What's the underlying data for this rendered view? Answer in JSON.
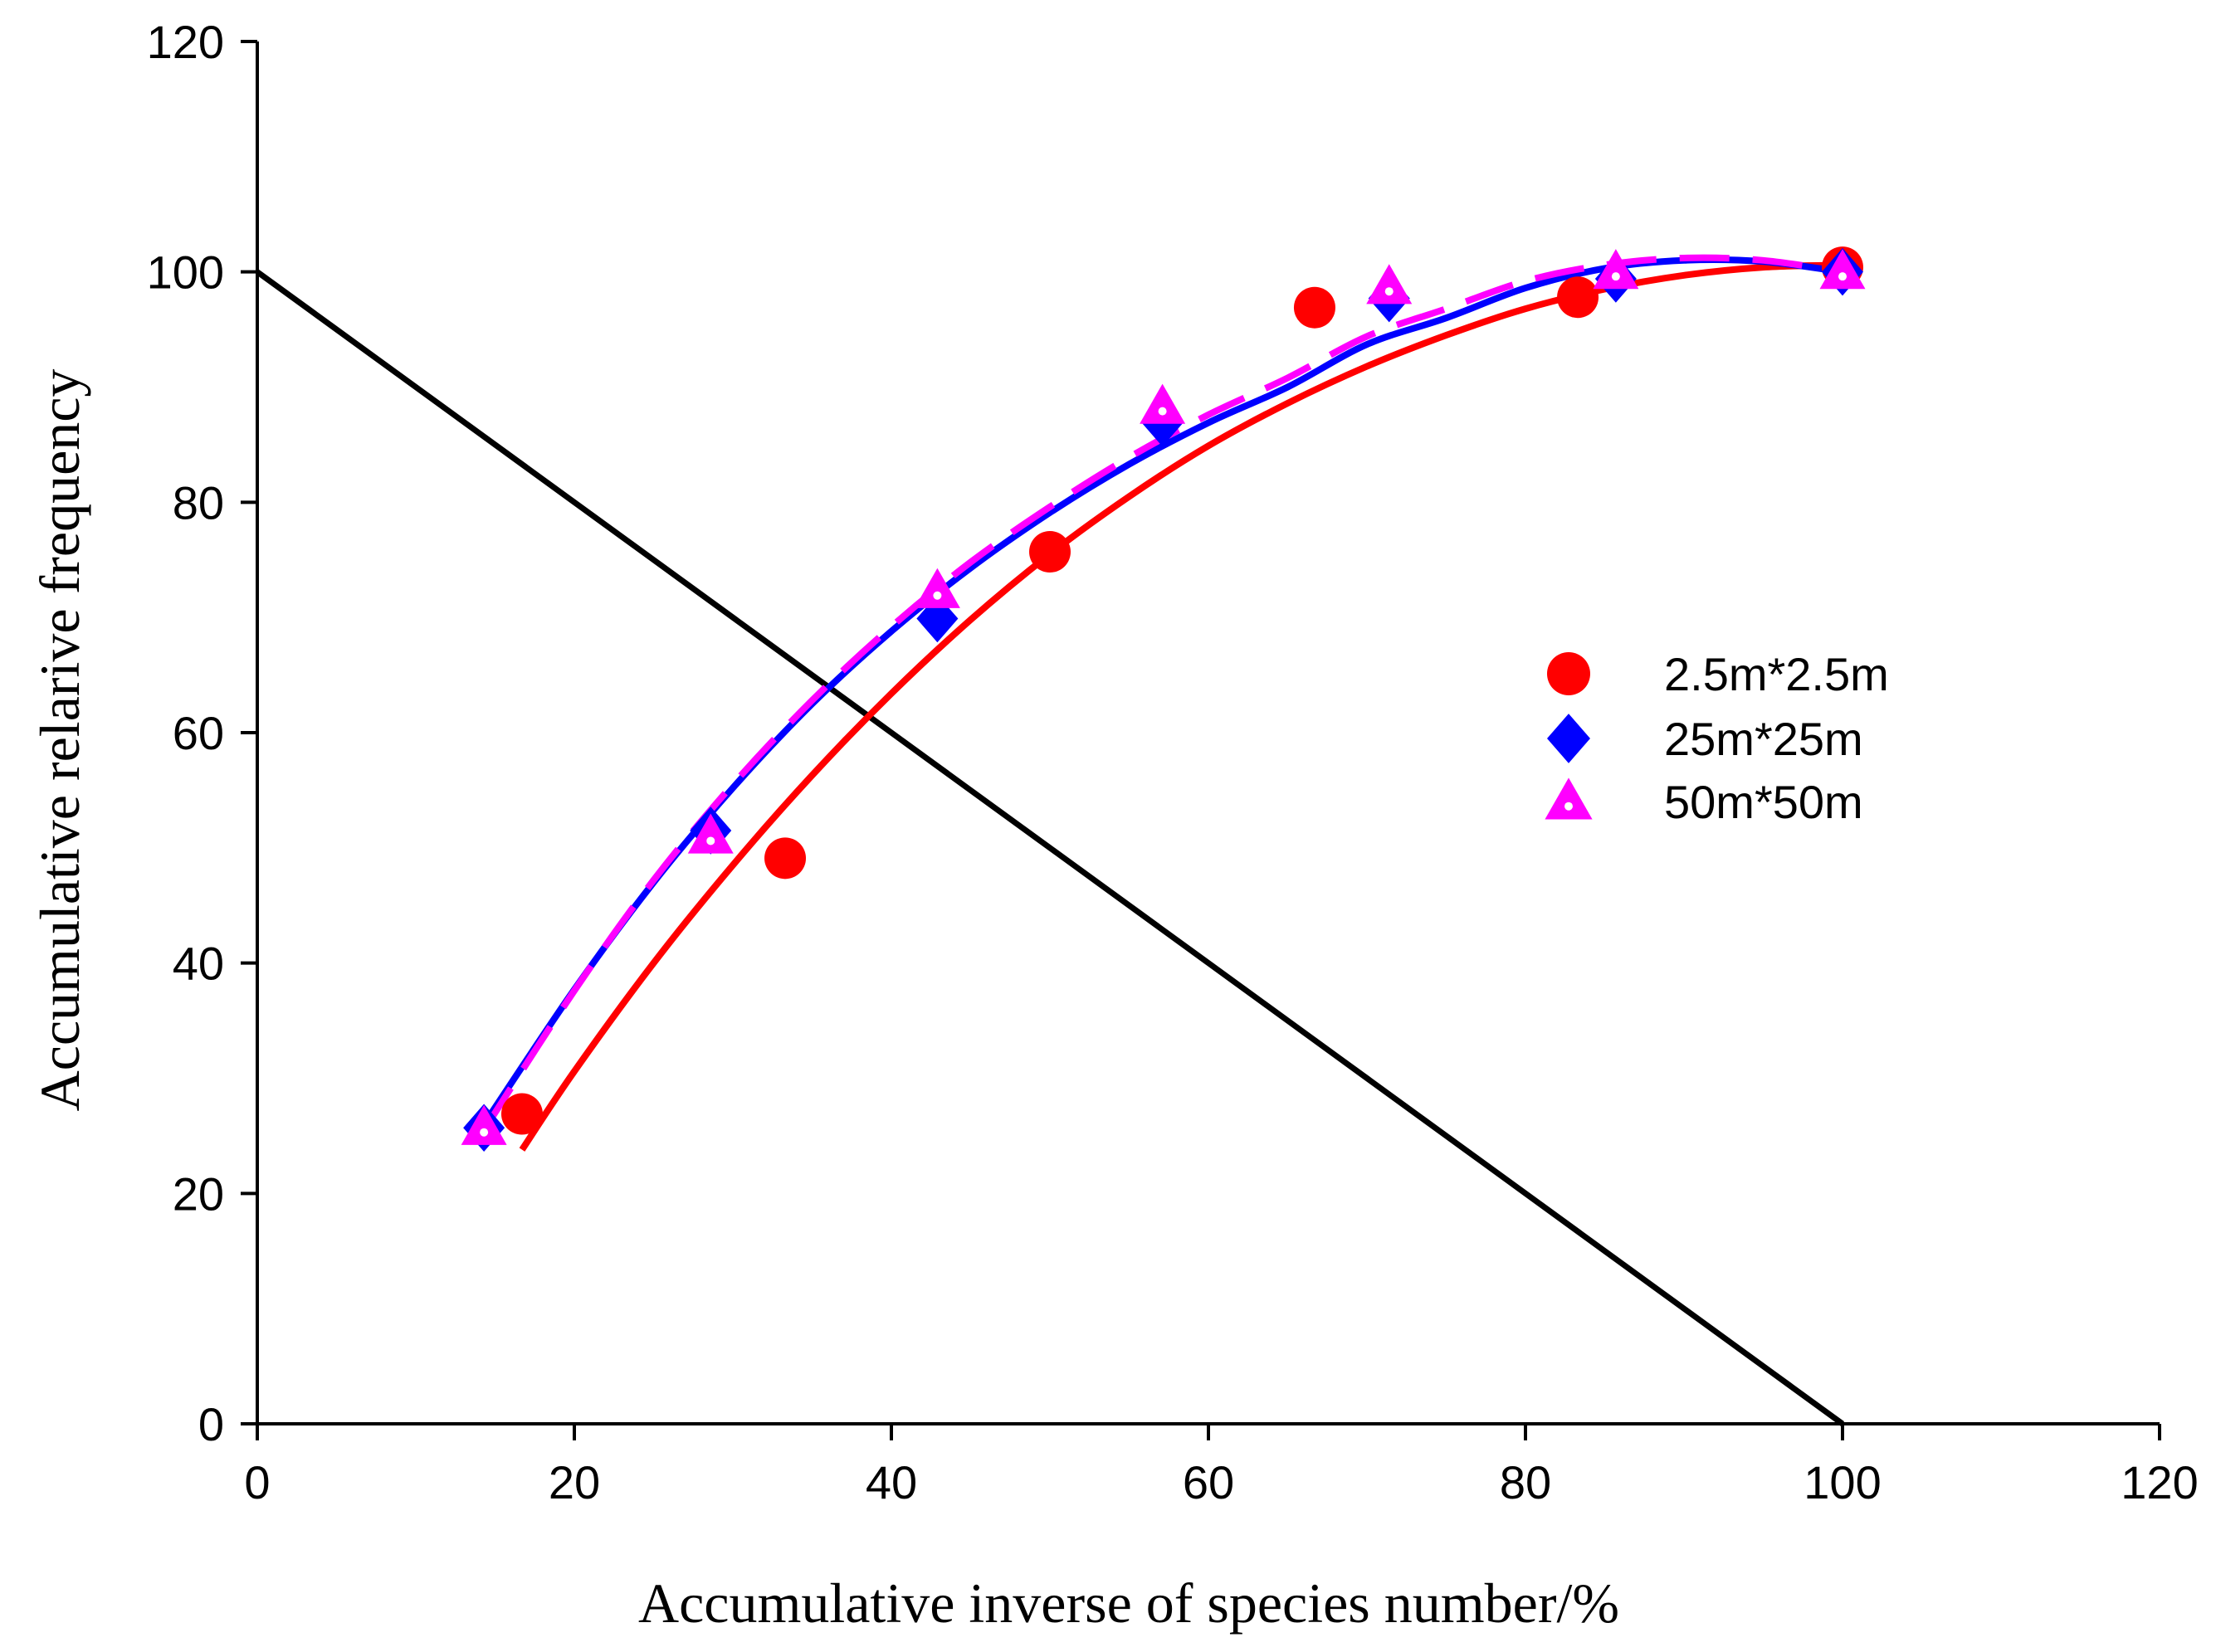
{
  "chart_data": {
    "type": "scatter",
    "title": "",
    "xlabel": "Accumulative inverse of species number/%",
    "ylabel": "Accumulative relarive frequency",
    "xlim": [
      0,
      120
    ],
    "ylim": [
      0,
      120
    ],
    "xticks": [
      0,
      20,
      40,
      60,
      80,
      100,
      120
    ],
    "yticks": [
      0,
      20,
      40,
      60,
      80,
      100,
      120
    ],
    "grid": false,
    "legend_position": "right",
    "reference_line": {
      "name": "reference line",
      "color": "#000000",
      "points": [
        [
          0,
          100
        ],
        [
          100,
          0
        ]
      ]
    },
    "series": [
      {
        "name": "2.5m*2.5m",
        "marker": "circle",
        "color": "#ff0000",
        "line_style": "solid",
        "points": [
          [
            16.7,
            26.9
          ],
          [
            33.3,
            49.1
          ],
          [
            50.0,
            75.7
          ],
          [
            66.7,
            96.9
          ],
          [
            83.3,
            97.8
          ],
          [
            100.0,
            100.4
          ]
        ],
        "fit_curve": [
          [
            16.7,
            23.8
          ],
          [
            20,
            30.6
          ],
          [
            25,
            40.0
          ],
          [
            30,
            48.5
          ],
          [
            35,
            56.3
          ],
          [
            40,
            63.4
          ],
          [
            45,
            69.8
          ],
          [
            50,
            75.5
          ],
          [
            55,
            80.5
          ],
          [
            60,
            84.9
          ],
          [
            65,
            88.6
          ],
          [
            70,
            91.8
          ],
          [
            75,
            94.5
          ],
          [
            80,
            96.8
          ],
          [
            85,
            98.5
          ],
          [
            90,
            99.7
          ],
          [
            95,
            100.4
          ],
          [
            100,
            100.6
          ]
        ]
      },
      {
        "name": "25m*25m",
        "marker": "diamond",
        "color": "#0000ff",
        "line_style": "solid",
        "points": [
          [
            14.3,
            25.7
          ],
          [
            28.6,
            51.5
          ],
          [
            42.9,
            69.9
          ],
          [
            57.1,
            86.9
          ],
          [
            71.4,
            97.7
          ],
          [
            85.7,
            99.4
          ],
          [
            100.0,
            100.0
          ]
        ],
        "fit_curve": [
          [
            14.3,
            26.0
          ],
          [
            20,
            37.7
          ],
          [
            25,
            47.0
          ],
          [
            30,
            55.2
          ],
          [
            35,
            62.5
          ],
          [
            40,
            68.8
          ],
          [
            45,
            74.3
          ],
          [
            50,
            79.1
          ],
          [
            55,
            83.3
          ],
          [
            60,
            86.9
          ],
          [
            65,
            90.0
          ],
          [
            70,
            93.7
          ],
          [
            75,
            96.0
          ],
          [
            80,
            98.6
          ],
          [
            85,
            100.3
          ],
          [
            90,
            101.0
          ],
          [
            95,
            100.9
          ],
          [
            100,
            100.0
          ]
        ]
      },
      {
        "name": "50m*50m",
        "marker": "triangle",
        "color": "#ff00ff",
        "line_style": "dashed",
        "points": [
          [
            14.3,
            25.7
          ],
          [
            28.6,
            51.0
          ],
          [
            42.9,
            72.3
          ],
          [
            57.1,
            88.3
          ],
          [
            71.4,
            98.7
          ],
          [
            85.7,
            100.0
          ],
          [
            100.0,
            100.0
          ]
        ],
        "fit_curve": [
          [
            14.3,
            25.5
          ],
          [
            20,
            37.6
          ],
          [
            25,
            47.2
          ],
          [
            30,
            55.5
          ],
          [
            35,
            62.8
          ],
          [
            40,
            69.2
          ],
          [
            45,
            74.8
          ],
          [
            50,
            79.6
          ],
          [
            55,
            83.9
          ],
          [
            60,
            87.6
          ],
          [
            65,
            90.8
          ],
          [
            70,
            94.4
          ],
          [
            75,
            96.8
          ],
          [
            80,
            99.2
          ],
          [
            85,
            100.6
          ],
          [
            90,
            101.2
          ],
          [
            95,
            101.0
          ],
          [
            100,
            100.0
          ]
        ]
      }
    ]
  }
}
